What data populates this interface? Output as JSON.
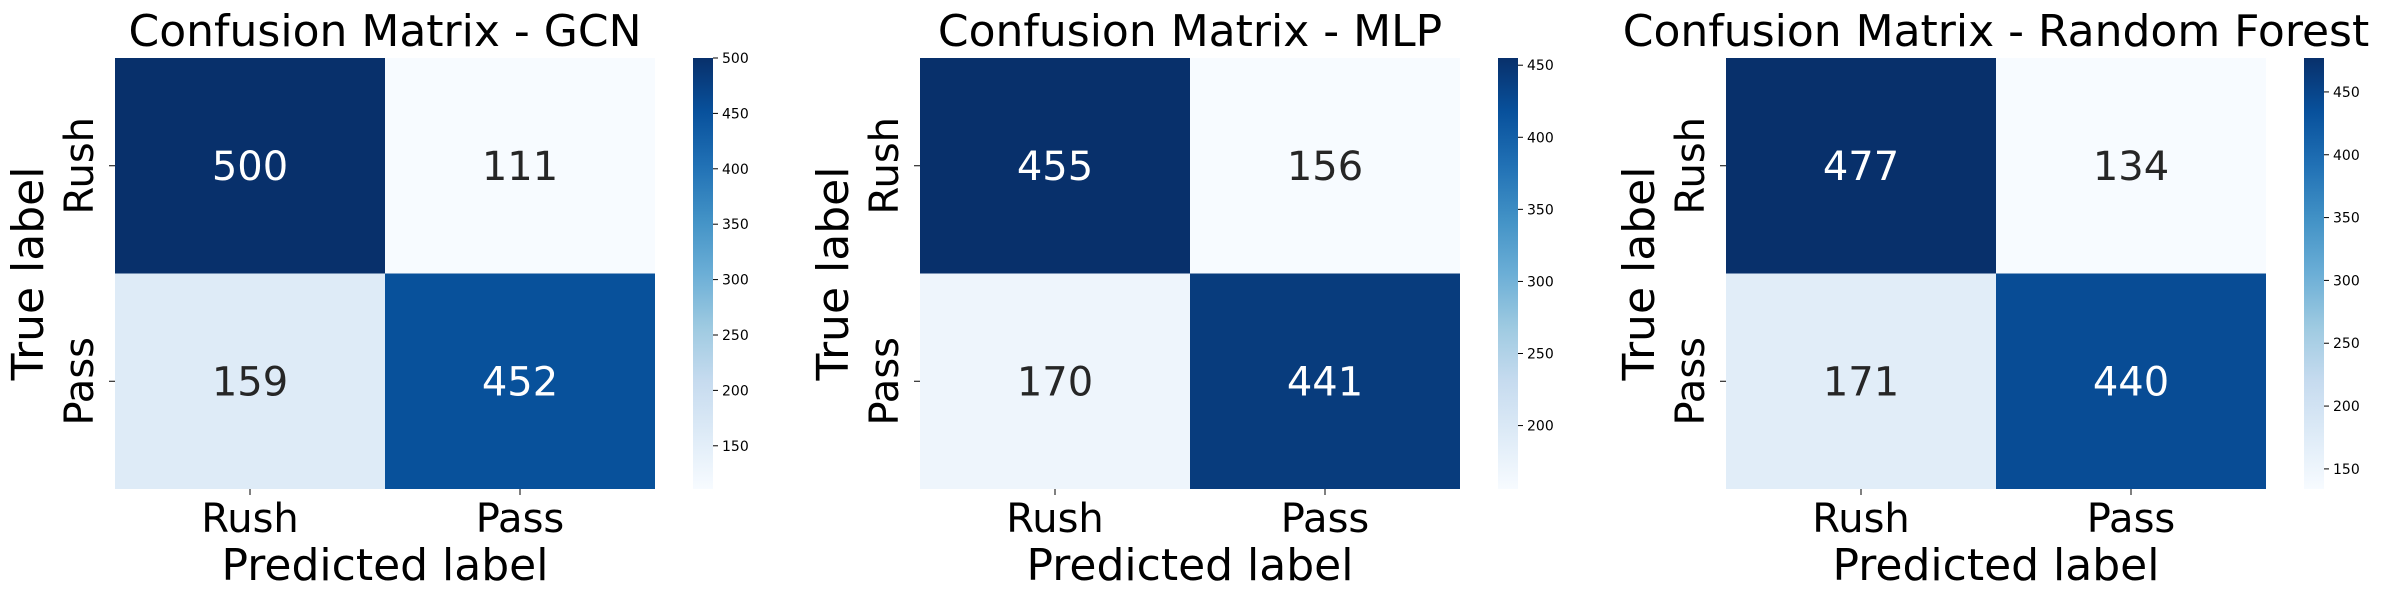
{
  "chart_data": [
    {
      "type": "heatmap",
      "title": "Confusion Matrix - GCN",
      "xlabel": "Predicted label",
      "ylabel": "True label",
      "x_categories": [
        "Rush",
        "Pass"
      ],
      "y_categories": [
        "Rush",
        "Pass"
      ],
      "values": [
        [
          500,
          111
        ],
        [
          159,
          452
        ]
      ],
      "colormap": "Blues",
      "color_range": [
        111,
        500
      ],
      "colorbar_ticks": [
        150,
        200,
        250,
        300,
        350,
        400,
        450,
        500
      ]
    },
    {
      "type": "heatmap",
      "title": "Confusion Matrix - MLP",
      "xlabel": "Predicted label",
      "ylabel": "True label",
      "x_categories": [
        "Rush",
        "Pass"
      ],
      "y_categories": [
        "Rush",
        "Pass"
      ],
      "values": [
        [
          455,
          156
        ],
        [
          170,
          441
        ]
      ],
      "colormap": "Blues",
      "color_range": [
        156,
        455
      ],
      "colorbar_ticks": [
        200,
        250,
        300,
        350,
        400,
        450
      ]
    },
    {
      "type": "heatmap",
      "title": "Confusion Matrix - Random Forest",
      "xlabel": "Predicted label",
      "ylabel": "True label",
      "x_categories": [
        "Rush",
        "Pass"
      ],
      "y_categories": [
        "Rush",
        "Pass"
      ],
      "values": [
        [
          477,
          134
        ],
        [
          171,
          440
        ]
      ],
      "colormap": "Blues",
      "color_range": [
        134,
        477
      ],
      "colorbar_ticks": [
        150,
        200,
        250,
        300,
        350,
        400,
        450
      ]
    }
  ]
}
